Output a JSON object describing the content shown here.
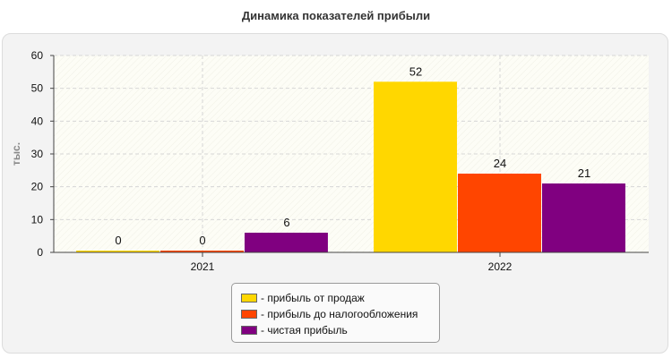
{
  "chart_data": {
    "type": "bar",
    "title": "Динамика показателей прибыли",
    "ylabel": "тыс.",
    "xlabel": "",
    "categories": [
      "2021",
      "2022"
    ],
    "ylim": [
      0,
      60
    ],
    "yticks": [
      0,
      10,
      20,
      30,
      40,
      50,
      60
    ],
    "grid": true,
    "legend_position": "bottom",
    "series": [
      {
        "name": "- прибыль от продаж",
        "values": [
          0,
          52
        ],
        "labels": [
          "0",
          "52"
        ],
        "color": "#FFD700"
      },
      {
        "name": "- прибыль до налогообложения",
        "values": [
          0,
          24
        ],
        "labels": [
          "0",
          "24"
        ],
        "color": "#FF4500"
      },
      {
        "name": "- чистая прибыль",
        "values": [
          6,
          21
        ],
        "labels": [
          "6",
          "21"
        ],
        "color": "#800080"
      }
    ]
  }
}
